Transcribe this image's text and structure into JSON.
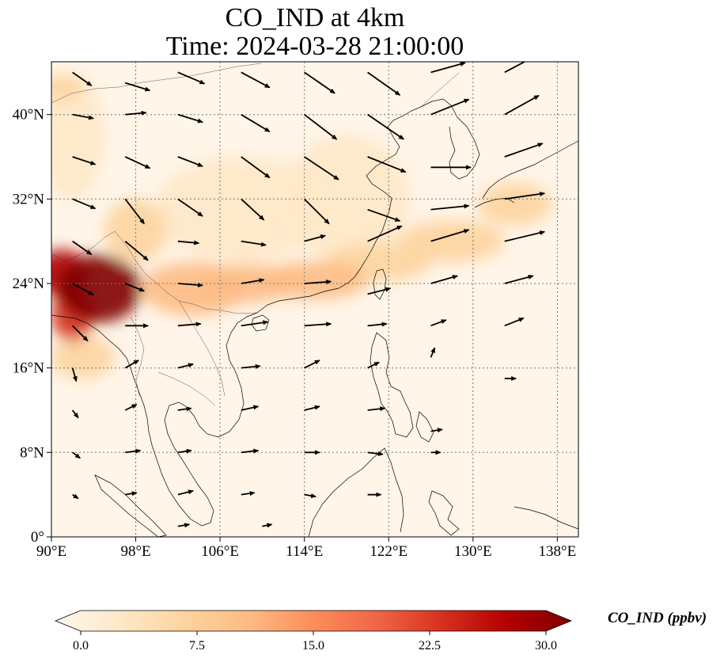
{
  "title": {
    "line1": "CO_IND at 4km",
    "line2": "Time: 2024-03-28 21:00:00"
  },
  "map": {
    "projection": "PlateCarree",
    "lon_range": [
      90,
      140
    ],
    "lat_range": [
      0,
      45
    ],
    "gridlines": "dotted",
    "lon_ticks": [
      {
        "value": 90,
        "label": "90°E"
      },
      {
        "value": 98,
        "label": "98°E"
      },
      {
        "value": 106,
        "label": "106°E"
      },
      {
        "value": 114,
        "label": "114°E"
      },
      {
        "value": 122,
        "label": "122°E"
      },
      {
        "value": 130,
        "label": "130°E"
      },
      {
        "value": 138,
        "label": "138°E"
      }
    ],
    "lat_ticks": [
      {
        "value": 0,
        "label": "0°"
      },
      {
        "value": 8,
        "label": "8°N"
      },
      {
        "value": 16,
        "label": "16°N"
      },
      {
        "value": 24,
        "label": "24°N"
      },
      {
        "value": 32,
        "label": "32°N"
      },
      {
        "value": 40,
        "label": "40°N"
      }
    ],
    "hotspots": [
      {
        "lon": 94.5,
        "lat": 23.5,
        "value": 30,
        "rlon": 4.0,
        "rlat": 3.2
      },
      {
        "lon": 91.0,
        "lat": 25.0,
        "value": 28,
        "rlon": 2.5,
        "rlat": 2.2
      },
      {
        "lon": 92.0,
        "lat": 21.0,
        "value": 24,
        "rlon": 2.0,
        "rlat": 2.5
      },
      {
        "lon": 103.5,
        "lat": 23.5,
        "value": 12,
        "rlon": 5.0,
        "rlat": 2.5
      },
      {
        "lon": 108.5,
        "lat": 24.0,
        "value": 12,
        "rlon": 4.5,
        "rlat": 1.8
      },
      {
        "lon": 115.0,
        "lat": 24.3,
        "value": 10,
        "rlon": 5.0,
        "rlat": 1.8
      },
      {
        "lon": 121.0,
        "lat": 26.0,
        "value": 9,
        "rlon": 5.0,
        "rlat": 1.8
      },
      {
        "lon": 128.0,
        "lat": 28.0,
        "value": 8,
        "rlon": 5.0,
        "rlat": 2.0
      },
      {
        "lon": 134.0,
        "lat": 31.5,
        "value": 9,
        "rlon": 3.5,
        "rlat": 2.0
      },
      {
        "lon": 91.0,
        "lat": 42.5,
        "value": 8,
        "rlon": 2.0,
        "rlat": 1.2
      },
      {
        "lon": 93.0,
        "lat": 17.0,
        "value": 9,
        "rlon": 3.0,
        "rlat": 2.0
      },
      {
        "lon": 98.0,
        "lat": 29.0,
        "value": 6,
        "rlon": 3.0,
        "rlat": 3.0
      },
      {
        "lon": 92.0,
        "lat": 38.0,
        "value": 4,
        "rlon": 3.0,
        "rlat": 6.0
      },
      {
        "lon": 108.0,
        "lat": 31.0,
        "value": 3,
        "rlon": 8.0,
        "rlat": 5.0
      },
      {
        "lon": 118.0,
        "lat": 32.0,
        "value": 3,
        "rlon": 6.0,
        "rlat": 6.0
      }
    ],
    "wind_arrows": [
      {
        "lon": 92,
        "lat": 44,
        "u": 2.0,
        "v": -1.4
      },
      {
        "lon": 97,
        "lat": 43,
        "u": 2.6,
        "v": -0.8
      },
      {
        "lon": 102,
        "lat": 44,
        "u": 2.8,
        "v": -1.2
      },
      {
        "lon": 108,
        "lat": 44,
        "u": 3.0,
        "v": -1.6
      },
      {
        "lon": 114,
        "lat": 44,
        "u": 3.2,
        "v": -2.2
      },
      {
        "lon": 120,
        "lat": 44,
        "u": 3.4,
        "v": -2.4
      },
      {
        "lon": 126,
        "lat": 44,
        "u": 3.6,
        "v": 1.0
      },
      {
        "lon": 133,
        "lat": 44,
        "u": 3.4,
        "v": 1.8
      },
      {
        "lon": 92,
        "lat": 40,
        "u": 2.2,
        "v": -0.4
      },
      {
        "lon": 97,
        "lat": 40,
        "u": 2.2,
        "v": 0.2
      },
      {
        "lon": 102,
        "lat": 40,
        "u": 2.6,
        "v": -0.8
      },
      {
        "lon": 108,
        "lat": 40,
        "u": 3.0,
        "v": -1.8
      },
      {
        "lon": 114,
        "lat": 40,
        "u": 3.4,
        "v": -2.6
      },
      {
        "lon": 120,
        "lat": 40,
        "u": 3.8,
        "v": -2.6
      },
      {
        "lon": 126,
        "lat": 40,
        "u": 4.0,
        "v": 1.6
      },
      {
        "lon": 133,
        "lat": 40,
        "u": 3.6,
        "v": 2.0
      },
      {
        "lon": 92,
        "lat": 36,
        "u": 2.4,
        "v": -0.8
      },
      {
        "lon": 97,
        "lat": 36,
        "u": 2.6,
        "v": -1.2
      },
      {
        "lon": 102,
        "lat": 36,
        "u": 2.6,
        "v": -1.0
      },
      {
        "lon": 108,
        "lat": 36,
        "u": 3.0,
        "v": -2.2
      },
      {
        "lon": 114,
        "lat": 36,
        "u": 3.6,
        "v": -2.4
      },
      {
        "lon": 120,
        "lat": 36,
        "u": 4.0,
        "v": -1.6
      },
      {
        "lon": 126,
        "lat": 35,
        "u": 4.2,
        "v": 0.0
      },
      {
        "lon": 133,
        "lat": 36,
        "u": 4.0,
        "v": 1.4
      },
      {
        "lon": 92,
        "lat": 32,
        "u": 2.4,
        "v": -1.0
      },
      {
        "lon": 97,
        "lat": 32,
        "u": 2.0,
        "v": -2.6
      },
      {
        "lon": 102,
        "lat": 32,
        "u": 2.6,
        "v": -1.8
      },
      {
        "lon": 108,
        "lat": 32,
        "u": 2.4,
        "v": -2.2
      },
      {
        "lon": 114,
        "lat": 32,
        "u": 2.6,
        "v": -2.6
      },
      {
        "lon": 120,
        "lat": 31,
        "u": 3.4,
        "v": -1.2
      },
      {
        "lon": 126,
        "lat": 31,
        "u": 4.0,
        "v": 0.4
      },
      {
        "lon": 133,
        "lat": 32,
        "u": 4.2,
        "v": 0.6
      },
      {
        "lon": 92,
        "lat": 28,
        "u": 2.0,
        "v": -1.4
      },
      {
        "lon": 97,
        "lat": 28,
        "u": 2.4,
        "v": -2.0
      },
      {
        "lon": 102,
        "lat": 28,
        "u": 2.2,
        "v": -0.2
      },
      {
        "lon": 108,
        "lat": 28,
        "u": 2.6,
        "v": -0.4
      },
      {
        "lon": 114,
        "lat": 28,
        "u": 2.2,
        "v": 0.6
      },
      {
        "lon": 120,
        "lat": 28,
        "u": 3.6,
        "v": 1.6
      },
      {
        "lon": 126,
        "lat": 28,
        "u": 4.0,
        "v": 1.2
      },
      {
        "lon": 133,
        "lat": 28,
        "u": 4.2,
        "v": 1.0
      },
      {
        "lon": 92,
        "lat": 24,
        "u": 2.2,
        "v": -1.2
      },
      {
        "lon": 97,
        "lat": 24,
        "u": 2.0,
        "v": -0.8
      },
      {
        "lon": 102,
        "lat": 24,
        "u": 2.6,
        "v": -0.2
      },
      {
        "lon": 108,
        "lat": 24,
        "u": 2.4,
        "v": 0.4
      },
      {
        "lon": 114,
        "lat": 24,
        "u": 2.8,
        "v": 0.2
      },
      {
        "lon": 120,
        "lat": 23,
        "u": 2.4,
        "v": 0.6
      },
      {
        "lon": 126,
        "lat": 24,
        "u": 2.8,
        "v": 0.8
      },
      {
        "lon": 133,
        "lat": 24,
        "u": 3.0,
        "v": 0.8
      },
      {
        "lon": 92,
        "lat": 20,
        "u": 1.6,
        "v": -1.6
      },
      {
        "lon": 97,
        "lat": 20,
        "u": 2.4,
        "v": 0.0
      },
      {
        "lon": 102,
        "lat": 20,
        "u": 2.4,
        "v": 0.2
      },
      {
        "lon": 108,
        "lat": 20,
        "u": 2.8,
        "v": 0.4
      },
      {
        "lon": 114,
        "lat": 20,
        "u": 2.8,
        "v": 0.2
      },
      {
        "lon": 120,
        "lat": 20,
        "u": 2.0,
        "v": 0.2
      },
      {
        "lon": 126,
        "lat": 20,
        "u": 1.6,
        "v": 0.6
      },
      {
        "lon": 133,
        "lat": 20,
        "u": 2.0,
        "v": 0.8
      },
      {
        "lon": 92,
        "lat": 16,
        "u": 0.4,
        "v": -1.4
      },
      {
        "lon": 97,
        "lat": 16,
        "u": 1.4,
        "v": 0.8
      },
      {
        "lon": 102,
        "lat": 16,
        "u": 1.6,
        "v": 0.4
      },
      {
        "lon": 108,
        "lat": 16,
        "u": 2.0,
        "v": 0.2
      },
      {
        "lon": 114,
        "lat": 16,
        "u": 1.6,
        "v": 0.8
      },
      {
        "lon": 120,
        "lat": 16,
        "u": 1.2,
        "v": 0.6
      },
      {
        "lon": 126,
        "lat": 17,
        "u": 0.4,
        "v": 1.0
      },
      {
        "lon": 133,
        "lat": 15,
        "u": 1.2,
        "v": 0.0
      },
      {
        "lon": 92,
        "lat": 12,
        "u": 0.6,
        "v": -0.8
      },
      {
        "lon": 97,
        "lat": 12,
        "u": 1.2,
        "v": 0.6
      },
      {
        "lon": 102,
        "lat": 12,
        "u": 1.4,
        "v": 0.2
      },
      {
        "lon": 108,
        "lat": 12,
        "u": 1.8,
        "v": 0.4
      },
      {
        "lon": 114,
        "lat": 12,
        "u": 1.6,
        "v": 0.4
      },
      {
        "lon": 120,
        "lat": 12,
        "u": 1.8,
        "v": 0.2
      },
      {
        "lon": 126,
        "lat": 10,
        "u": 1.2,
        "v": 0.2
      },
      {
        "lon": 92,
        "lat": 8,
        "u": 0.8,
        "v": -0.6
      },
      {
        "lon": 97,
        "lat": 8,
        "u": 1.6,
        "v": 0.2
      },
      {
        "lon": 102,
        "lat": 8,
        "u": 1.4,
        "v": 0.2
      },
      {
        "lon": 108,
        "lat": 8,
        "u": 1.8,
        "v": 0.2
      },
      {
        "lon": 114,
        "lat": 8,
        "u": 1.6,
        "v": 0.0
      },
      {
        "lon": 120,
        "lat": 8,
        "u": 1.6,
        "v": -0.2
      },
      {
        "lon": 126,
        "lat": 8,
        "u": 1.0,
        "v": 0.0
      },
      {
        "lon": 92,
        "lat": 4,
        "u": 0.6,
        "v": -0.4
      },
      {
        "lon": 97,
        "lat": 4,
        "u": 1.2,
        "v": 0.2
      },
      {
        "lon": 102,
        "lat": 4,
        "u": 1.6,
        "v": 0.4
      },
      {
        "lon": 108,
        "lat": 4,
        "u": 1.4,
        "v": 0.2
      },
      {
        "lon": 114,
        "lat": 4,
        "u": 1.2,
        "v": -0.2
      },
      {
        "lon": 120,
        "lat": 4,
        "u": 1.4,
        "v": 0.0
      },
      {
        "lon": 102,
        "lat": 1,
        "u": 1.2,
        "v": 0.2
      },
      {
        "lon": 110,
        "lat": 1,
        "u": 1.0,
        "v": 0.2
      }
    ]
  },
  "colorbar": {
    "label": "CO_IND (ppbv)",
    "ticks": [
      "0.0",
      "7.5",
      "15.0",
      "22.5",
      "30.0"
    ],
    "vmin": 0,
    "vmax": 30,
    "colors": [
      "#fff7ec",
      "#fee8c8",
      "#fdd49e",
      "#fdbb84",
      "#fc8d59",
      "#ef6548",
      "#d7301f",
      "#b30000",
      "#7f0000"
    ]
  }
}
